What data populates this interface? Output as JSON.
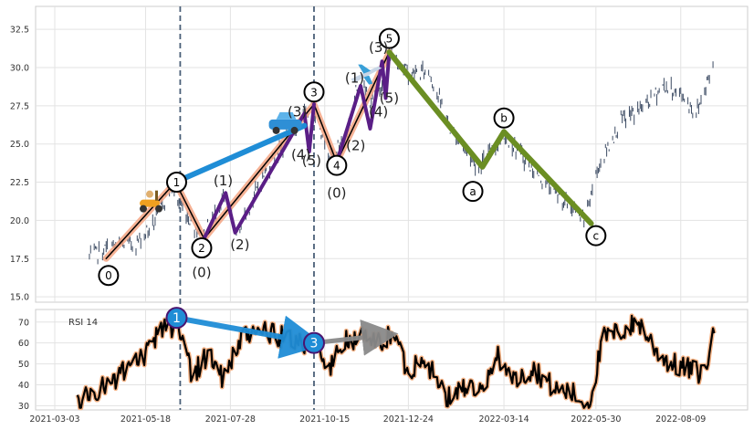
{
  "chart_data": [
    {
      "type": "line",
      "panel": "price",
      "ylim": [
        15.0,
        34.0
      ],
      "yticks": [
        "15.0",
        "17.5",
        "20.0",
        "22.5",
        "25.0",
        "27.5",
        "30.0",
        "32.5"
      ],
      "grid": true,
      "price_anchors": [
        {
          "x": "2021-04-01",
          "y": 17.6
        },
        {
          "x": "2021-04-20",
          "y": 18.3
        },
        {
          "x": "2021-05-10",
          "y": 18.5
        },
        {
          "x": "2021-05-25",
          "y": 19.8
        },
        {
          "x": "2021-06-08",
          "y": 22.2
        },
        {
          "x": "2021-06-20",
          "y": 20.5
        },
        {
          "x": "2021-07-05",
          "y": 18.9
        },
        {
          "x": "2021-07-22",
          "y": 21.5
        },
        {
          "x": "2021-08-03",
          "y": 19.2
        },
        {
          "x": "2021-08-25",
          "y": 23.0
        },
        {
          "x": "2021-09-15",
          "y": 25.5
        },
        {
          "x": "2021-10-05",
          "y": 27.6
        },
        {
          "x": "2021-10-20",
          "y": 24.2
        },
        {
          "x": "2021-11-01",
          "y": 25.3
        },
        {
          "x": "2021-11-12",
          "y": 29.0
        },
        {
          "x": "2021-11-25",
          "y": 27.6
        },
        {
          "x": "2021-12-10",
          "y": 31.0
        },
        {
          "x": "2021-12-25",
          "y": 29.5
        },
        {
          "x": "2022-01-10",
          "y": 29.8
        },
        {
          "x": "2022-01-28",
          "y": 26.0
        },
        {
          "x": "2022-02-20",
          "y": 23.5
        },
        {
          "x": "2022-03-15",
          "y": 25.6
        },
        {
          "x": "2022-04-05",
          "y": 23.5
        },
        {
          "x": "2022-04-30",
          "y": 21.5
        },
        {
          "x": "2022-05-20",
          "y": 20.0
        },
        {
          "x": "2022-06-01",
          "y": 23.5
        },
        {
          "x": "2022-06-20",
          "y": 26.5
        },
        {
          "x": "2022-07-10",
          "y": 27.5
        },
        {
          "x": "2022-07-25",
          "y": 28.8
        },
        {
          "x": "2022-08-10",
          "y": 28.2
        },
        {
          "x": "2022-08-22",
          "y": 27.0
        },
        {
          "x": "2022-09-05",
          "y": 30.2
        }
      ],
      "wave_paths": [
        {
          "color": "#f4a582",
          "width": 7,
          "points": [
            [
              "2021-04-15",
              17.5
            ],
            [
              "2021-06-12",
              22.5
            ],
            [
              "2021-07-06",
              18.8
            ],
            [
              "2021-10-06",
              27.6
            ],
            [
              "2021-10-25",
              23.8
            ],
            [
              "2021-12-08",
              31.0
            ]
          ]
        },
        {
          "color": "#000000",
          "width": 1.5,
          "points": [
            [
              "2021-04-15",
              17.5
            ],
            [
              "2021-06-12",
              22.5
            ],
            [
              "2021-07-06",
              18.8
            ],
            [
              "2021-10-06",
              27.6
            ],
            [
              "2021-10-25",
              23.8
            ],
            [
              "2021-12-08",
              31.0
            ]
          ]
        },
        {
          "color": "#5a1e86",
          "width": 4,
          "points": [
            [
              "2021-07-06",
              18.8
            ],
            [
              "2021-07-24",
              21.8
            ],
            [
              "2021-08-01",
              19.2
            ],
            [
              "2021-09-28",
              27.0
            ],
            [
              "2021-10-02",
              24.5
            ],
            [
              "2021-10-06",
              27.6
            ]
          ]
        },
        {
          "color": "#5a1e86",
          "width": 4,
          "points": [
            [
              "2021-10-25",
              23.8
            ],
            [
              "2021-11-14",
              28.8
            ],
            [
              "2021-11-22",
              26.0
            ],
            [
              "2021-12-02",
              30.4
            ],
            [
              "2021-12-05",
              28.0
            ],
            [
              "2021-12-08",
              31.0
            ]
          ]
        },
        {
          "color": "#6b8e23",
          "width": 6,
          "points": [
            [
              "2021-12-08",
              31.0
            ],
            [
              "2022-02-24",
              23.5
            ],
            [
              "2022-03-14",
              25.8
            ],
            [
              "2022-05-26",
              19.8
            ]
          ]
        },
        {
          "color": "#1f8dd6",
          "width": 6,
          "points": [
            [
              "2021-06-12",
              22.5
            ],
            [
              "2021-09-28",
              26.2
            ]
          ]
        }
      ],
      "vlines": [
        "2021-06-16",
        "2021-10-06"
      ],
      "wave_labels": [
        {
          "text": "0",
          "x": "2021-04-17",
          "y": 16.4,
          "circled": true
        },
        {
          "text": "1",
          "x": "2021-06-13",
          "y": 22.5,
          "circled": true
        },
        {
          "text": "2",
          "x": "2021-07-04",
          "y": 18.2,
          "circled": true
        },
        {
          "text": "3",
          "x": "2021-10-06",
          "y": 28.4,
          "circled": true
        },
        {
          "text": "4",
          "x": "2021-10-25",
          "y": 23.6,
          "circled": true
        },
        {
          "text": "5",
          "x": "2021-12-08",
          "y": 31.9,
          "circled": true
        },
        {
          "text": "a",
          "x": "2022-02-16",
          "y": 21.9,
          "circled": true
        },
        {
          "text": "b",
          "x": "2022-03-14",
          "y": 26.7,
          "circled": true
        },
        {
          "text": "c",
          "x": "2022-05-30",
          "y": 19.0,
          "circled": true
        },
        {
          "text": "(0)",
          "x": "2021-07-04",
          "y": 16.6,
          "circled": false
        },
        {
          "text": "(1)",
          "x": "2021-07-22",
          "y": 22.6,
          "circled": false
        },
        {
          "text": "(2)",
          "x": "2021-08-05",
          "y": 18.4,
          "circled": false
        },
        {
          "text": "(3)",
          "x": "2021-09-22",
          "y": 27.1,
          "circled": false
        },
        {
          "text": "(4)",
          "x": "2021-09-25",
          "y": 24.3,
          "circled": false
        },
        {
          "text": "(5)",
          "x": "2021-10-04",
          "y": 23.9,
          "circled": false
        },
        {
          "text": "(0)",
          "x": "2021-10-25",
          "y": 21.8,
          "circled": false
        },
        {
          "text": "(1)",
          "x": "2021-11-09",
          "y": 29.3,
          "circled": false
        },
        {
          "text": "(2)",
          "x": "2021-11-10",
          "y": 24.9,
          "circled": false
        },
        {
          "text": "(3)",
          "x": "2021-11-29",
          "y": 31.3,
          "circled": false
        },
        {
          "text": "(4)",
          "x": "2021-11-29",
          "y": 27.1,
          "circled": false
        },
        {
          "text": "(5)",
          "x": "2021-12-08",
          "y": 28.0,
          "circled": false
        }
      ],
      "decorations": [
        {
          "icon": "scooter-icon",
          "x": "2021-05-23",
          "y": 21.0
        },
        {
          "icon": "car-icon",
          "x": "2021-09-12",
          "y": 26.3
        },
        {
          "icon": "airplane-icon",
          "x": "2021-11-18",
          "y": 29.6
        }
      ]
    },
    {
      "type": "line",
      "panel": "rsi",
      "legend": "RSI 14",
      "ylim": [
        28,
        76
      ],
      "yticks": [
        "30",
        "40",
        "50",
        "60",
        "70"
      ],
      "grid": true,
      "xticks": [
        "2021-03-03",
        "2021-05-18",
        "2021-07-28",
        "2021-10-15",
        "2021-12-24",
        "2022-03-14",
        "2022-05-30",
        "2022-08-09"
      ],
      "rsi_anchors": [
        {
          "x": "2021-03-20",
          "y": 31
        },
        {
          "x": "2021-04-10",
          "y": 38
        },
        {
          "x": "2021-04-28",
          "y": 45
        },
        {
          "x": "2021-05-20",
          "y": 55
        },
        {
          "x": "2021-06-02",
          "y": 69
        },
        {
          "x": "2021-06-16",
          "y": 67
        },
        {
          "x": "2021-06-26",
          "y": 45
        },
        {
          "x": "2021-07-10",
          "y": 55
        },
        {
          "x": "2021-07-22",
          "y": 43
        },
        {
          "x": "2021-08-05",
          "y": 60
        },
        {
          "x": "2021-08-20",
          "y": 67
        },
        {
          "x": "2021-09-05",
          "y": 63
        },
        {
          "x": "2021-09-20",
          "y": 62
        },
        {
          "x": "2021-10-06",
          "y": 59
        },
        {
          "x": "2021-10-18",
          "y": 47
        },
        {
          "x": "2021-10-30",
          "y": 60
        },
        {
          "x": "2021-11-15",
          "y": 63
        },
        {
          "x": "2021-11-30",
          "y": 60
        },
        {
          "x": "2021-12-12",
          "y": 65
        },
        {
          "x": "2021-12-24",
          "y": 45
        },
        {
          "x": "2022-01-05",
          "y": 55
        },
        {
          "x": "2022-01-25",
          "y": 33
        },
        {
          "x": "2022-02-10",
          "y": 40
        },
        {
          "x": "2022-02-25",
          "y": 35
        },
        {
          "x": "2022-03-08",
          "y": 55
        },
        {
          "x": "2022-03-22",
          "y": 42
        },
        {
          "x": "2022-04-08",
          "y": 48
        },
        {
          "x": "2022-04-25",
          "y": 38
        },
        {
          "x": "2022-05-10",
          "y": 36
        },
        {
          "x": "2022-05-24",
          "y": 30
        },
        {
          "x": "2022-06-05",
          "y": 62
        },
        {
          "x": "2022-06-22",
          "y": 66
        },
        {
          "x": "2022-07-05",
          "y": 70
        },
        {
          "x": "2022-07-20",
          "y": 56
        },
        {
          "x": "2022-08-01",
          "y": 50
        },
        {
          "x": "2022-08-18",
          "y": 47
        },
        {
          "x": "2022-08-28",
          "y": 45
        },
        {
          "x": "2022-09-06",
          "y": 64
        }
      ],
      "arrows": [
        {
          "color": "#1f8dd6",
          "from": [
            "2021-06-13",
            72
          ],
          "to": [
            "2021-10-06",
            60
          ]
        },
        {
          "color": "#8a8a8a",
          "from": [
            "2021-10-06",
            60
          ],
          "to": [
            "2021-12-08",
            64
          ]
        }
      ],
      "markers": [
        {
          "text": "1",
          "x": "2021-06-13",
          "y": 72
        },
        {
          "text": "3",
          "x": "2021-10-06",
          "y": 60
        }
      ]
    }
  ]
}
